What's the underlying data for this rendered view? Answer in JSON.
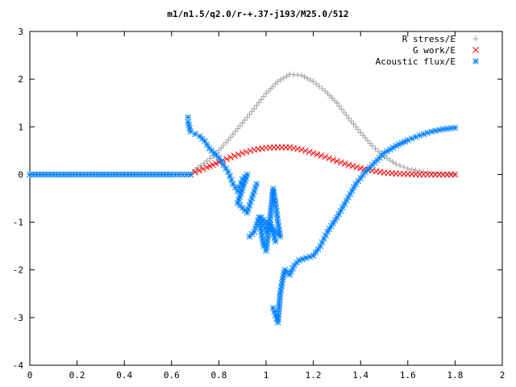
{
  "chart_data": {
    "type": "scatter",
    "title": "m1/n1.5/q2.0/r-+.37-j193/M25.0/512",
    "xlabel": "",
    "ylabel": "",
    "xlim": [
      0,
      2
    ],
    "ylim": [
      -4,
      3
    ],
    "xticks": [
      "0",
      "0.2",
      "0.4",
      "0.6",
      "0.8",
      "1",
      "1.2",
      "1.4",
      "1.6",
      "1.8",
      "2"
    ],
    "yticks": [
      "3",
      "2",
      "1",
      "0",
      "-1",
      "-2",
      "-3",
      "-4"
    ],
    "grid": false,
    "legend_position": "top-right",
    "series": [
      {
        "name": "R stress/E",
        "marker": "plus",
        "color": "#a0a0a0",
        "x": [
          0.0,
          0.1,
          0.2,
          0.3,
          0.4,
          0.5,
          0.6,
          0.68,
          0.7,
          0.75,
          0.8,
          0.85,
          0.9,
          0.95,
          1.0,
          1.05,
          1.1,
          1.15,
          1.2,
          1.25,
          1.3,
          1.35,
          1.4,
          1.45,
          1.5,
          1.55,
          1.6,
          1.65,
          1.7,
          1.75,
          1.8
        ],
        "y": [
          0.0,
          0.0,
          0.0,
          0.0,
          0.0,
          0.0,
          0.0,
          0.0,
          0.1,
          0.28,
          0.5,
          0.78,
          1.08,
          1.38,
          1.7,
          1.95,
          2.1,
          2.08,
          1.95,
          1.75,
          1.5,
          1.18,
          0.88,
          0.6,
          0.38,
          0.22,
          0.12,
          0.07,
          0.03,
          0.01,
          0.0
        ]
      },
      {
        "name": "G work/E",
        "marker": "cross",
        "color": "#ff0000",
        "x": [
          0.68,
          0.7,
          0.75,
          0.8,
          0.85,
          0.9,
          0.95,
          1.0,
          1.05,
          1.1,
          1.15,
          1.2,
          1.25,
          1.3,
          1.35,
          1.4,
          1.45,
          1.5,
          1.55,
          1.6,
          1.65,
          1.7,
          1.75,
          1.8
        ],
        "y": [
          0.0,
          0.05,
          0.15,
          0.26,
          0.36,
          0.45,
          0.52,
          0.56,
          0.57,
          0.57,
          0.52,
          0.45,
          0.37,
          0.28,
          0.2,
          0.13,
          0.08,
          0.04,
          0.02,
          0.01,
          0.0,
          0.0,
          0.0,
          0.0
        ]
      },
      {
        "name": "Acoustic flux/E",
        "marker": "star",
        "color": "#0080ff",
        "x": [
          0.0,
          0.1,
          0.2,
          0.3,
          0.4,
          0.5,
          0.6,
          0.68,
          0.67,
          0.67,
          0.68,
          0.7,
          0.72,
          0.74,
          0.76,
          0.78,
          0.8,
          0.82,
          0.84,
          0.86,
          0.88,
          0.9,
          0.92,
          0.88,
          0.92,
          0.94,
          0.96,
          0.93,
          0.95,
          0.97,
          0.99,
          1.0,
          1.02,
          1.03,
          1.04,
          1.05,
          1.06,
          0.98,
          1.0,
          1.02,
          1.04,
          1.03,
          1.05,
          1.06,
          1.07,
          1.08,
          1.1,
          1.12,
          1.14,
          1.17,
          1.2,
          1.23,
          1.26,
          1.3,
          1.34,
          1.38,
          1.42,
          1.46,
          1.5,
          1.55,
          1.6,
          1.65,
          1.7,
          1.75,
          1.8
        ],
        "y": [
          0.0,
          0.0,
          0.0,
          0.0,
          0.0,
          0.0,
          0.0,
          0.0,
          1.2,
          1.1,
          0.9,
          0.85,
          0.8,
          0.7,
          0.55,
          0.45,
          0.35,
          0.2,
          0.05,
          -0.2,
          -0.35,
          -0.1,
          0.0,
          -0.6,
          -0.8,
          -0.5,
          -0.2,
          -1.3,
          -1.2,
          -0.9,
          -1.5,
          -1.6,
          -0.8,
          -0.3,
          -0.6,
          -1.0,
          -1.3,
          -0.9,
          -1.2,
          -1.05,
          -1.4,
          -2.8,
          -3.1,
          -2.5,
          -2.2,
          -2.0,
          -2.1,
          -1.9,
          -1.8,
          -1.75,
          -1.7,
          -1.5,
          -1.2,
          -0.9,
          -0.55,
          -0.2,
          0.05,
          0.25,
          0.45,
          0.6,
          0.72,
          0.82,
          0.9,
          0.95,
          0.98
        ]
      }
    ]
  }
}
